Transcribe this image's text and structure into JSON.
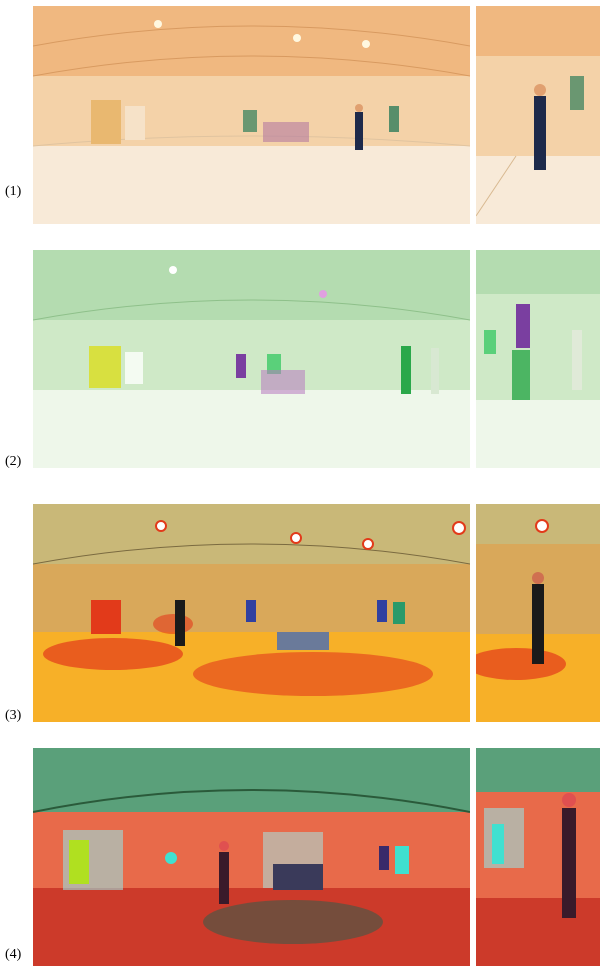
{
  "figure": {
    "rows": [
      {
        "label": "(1)",
        "palette": {
          "base": "#f4d2a8",
          "floor": "#f8ead8",
          "ceiling": "#f0b880",
          "accent": "#2f7d5a",
          "figure": "#1e2a4a"
        }
      },
      {
        "label": "(2)",
        "palette": {
          "base": "#cfe9c7",
          "floor": "#eef7ea",
          "ceiling": "#b4dcb0",
          "accent": "#7a3fa0",
          "figure": "#2aa84a"
        }
      },
      {
        "label": "(3)",
        "palette": {
          "base": "#d9a85a",
          "floor": "#f7b028",
          "ceiling": "#c9b878",
          "accent": "#e23a1a",
          "figure": "#1a1a1a"
        }
      },
      {
        "label": "(4)",
        "palette": {
          "base": "#e86a4a",
          "floor": "#cc3a2a",
          "ceiling": "#5aa07a",
          "accent": "#40e0d0",
          "figure": "#3a1a2a"
        }
      }
    ]
  }
}
